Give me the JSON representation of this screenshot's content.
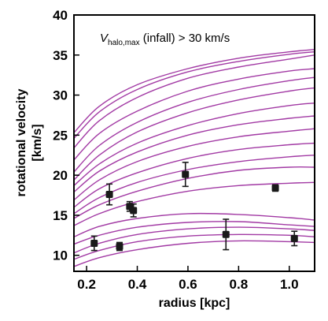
{
  "chart_data": {
    "type": "line",
    "title": "",
    "xlabel": "radius [kpc]",
    "ylabel_line1": "rotational velocity",
    "ylabel_line2": "[km/s]",
    "xlim": [
      0.15,
      1.1
    ],
    "ylim": [
      8,
      40
    ],
    "xticks": [
      0.2,
      0.4,
      0.6,
      0.8,
      1.0
    ],
    "xtick_labels": [
      "0.2",
      "0.4",
      "0.6",
      "0.8",
      "1.0"
    ],
    "yticks": [
      10,
      15,
      20,
      25,
      30,
      35,
      40
    ],
    "ytick_labels": [
      "10",
      "15",
      "20",
      "25",
      "30",
      "35",
      "40"
    ],
    "annotation": {
      "symbol": "V",
      "subscript": "halo,max",
      "text": " (infall) > 30 km/s"
    },
    "curve_color": "#a23aa4",
    "marker_color": "#1a1a1a",
    "curves": {
      "x": [
        0.15,
        0.25,
        0.4,
        0.6,
        0.8,
        1.0,
        1.1
      ],
      "series": [
        [
          25.3,
          28.6,
          31.3,
          33.3,
          34.6,
          35.4,
          35.7
        ],
        [
          24.6,
          27.9,
          30.7,
          32.9,
          34.2,
          35.1,
          35.4
        ],
        [
          23.4,
          26.8,
          29.7,
          32.1,
          33.5,
          34.5,
          35.0
        ],
        [
          21.9,
          25.2,
          28.0,
          30.5,
          32.0,
          33.0,
          33.3
        ],
        [
          20.4,
          23.7,
          26.6,
          29.1,
          30.7,
          31.8,
          32.2
        ],
        [
          19.4,
          22.5,
          25.4,
          27.8,
          29.4,
          30.5,
          30.9
        ],
        [
          18.7,
          21.4,
          24.0,
          26.2,
          27.7,
          28.7,
          29.0
        ],
        [
          17.9,
          20.5,
          22.9,
          25.0,
          26.3,
          27.1,
          27.4
        ],
        [
          16.9,
          19.4,
          21.7,
          23.6,
          24.8,
          25.5,
          25.8
        ],
        [
          16.0,
          18.3,
          20.3,
          22.1,
          23.2,
          23.8,
          24.0
        ],
        [
          15.2,
          17.2,
          19.1,
          20.7,
          21.7,
          22.3,
          22.5
        ],
        [
          14.6,
          16.3,
          18.0,
          19.6,
          20.6,
          21.0,
          21.0
        ],
        [
          13.7,
          15.2,
          16.7,
          18.0,
          18.7,
          19.0,
          19.1
        ],
        [
          12.3,
          13.6,
          14.6,
          15.2,
          15.1,
          14.7,
          14.4
        ],
        [
          11.4,
          12.5,
          13.5,
          14.1,
          14.2,
          13.8,
          13.6
        ],
        [
          10.3,
          11.5,
          12.6,
          13.3,
          13.5,
          13.3,
          13.1
        ],
        [
          9.5,
          10.6,
          11.7,
          12.4,
          12.6,
          12.5,
          12.3
        ],
        [
          8.6,
          9.7,
          10.7,
          11.5,
          11.8,
          11.7,
          11.6
        ]
      ]
    },
    "observations": {
      "x": [
        0.23,
        0.29,
        0.33,
        0.37,
        0.385,
        0.59,
        0.75,
        0.945,
        1.02
      ],
      "y": [
        11.5,
        17.6,
        11.1,
        16.1,
        15.6,
        20.1,
        12.6,
        18.4,
        12.1
      ],
      "yerr": [
        0.9,
        1.3,
        0.5,
        0.6,
        0.8,
        1.5,
        1.9,
        0.4,
        0.9
      ]
    }
  }
}
